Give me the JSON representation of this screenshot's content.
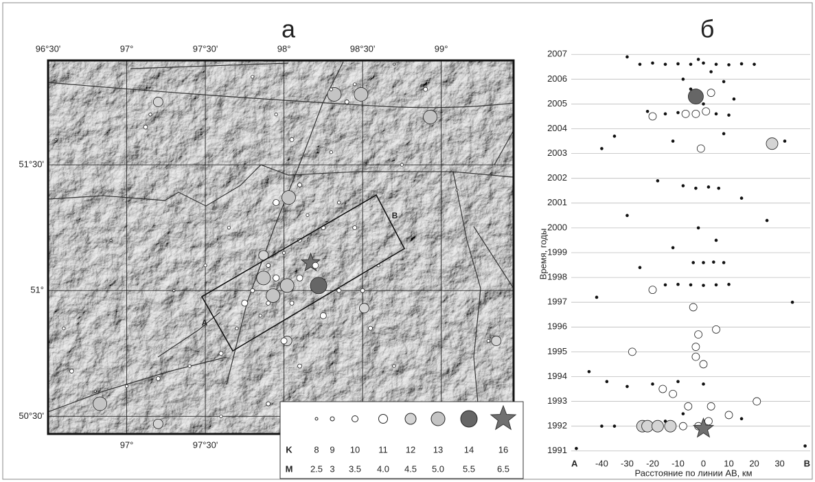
{
  "chart_data": [
    {
      "type": "map",
      "title": "а",
      "xlim": [
        96.5,
        99.46
      ],
      "ylim": [
        50.43,
        51.915
      ],
      "xticks": [
        {
          "value": 96.5,
          "label": "96°30'"
        },
        {
          "value": 97,
          "label": "97°"
        },
        {
          "value": 97.5,
          "label": "97°30'"
        },
        {
          "value": 98,
          "label": "98°"
        },
        {
          "value": 98.5,
          "label": "98°30'"
        },
        {
          "value": 99,
          "label": "99°"
        }
      ],
      "yticks": [
        {
          "value": 50.5,
          "label": "50°30'"
        },
        {
          "value": 51,
          "label": "51°"
        },
        {
          "value": 51.5,
          "label": "51°30'"
        }
      ],
      "profile_labels": [
        "A",
        "B"
      ],
      "legend": {
        "row_labels": [
          "K",
          "M"
        ],
        "items": [
          {
            "K": 8,
            "M": "2.5",
            "color": "#ffffff"
          },
          {
            "K": 9,
            "M": "3",
            "color": "#ffffff"
          },
          {
            "K": 10,
            "M": "3.5",
            "color": "#ffffff"
          },
          {
            "K": 11,
            "M": "4.0",
            "color": "#ffffff"
          },
          {
            "K": 12,
            "M": "4.5",
            "color": "#d4d4d4"
          },
          {
            "K": 13,
            "M": "5.0",
            "color": "#c4c4c4"
          },
          {
            "K": 14,
            "M": "5.5",
            "color": "#666666"
          },
          {
            "K": 16,
            "M": "6.5",
            "color": "#707070"
          }
        ]
      },
      "x": [
        97.9,
        98.0,
        98.1,
        97.95,
        98.05,
        97.85,
        98.15,
        97.8,
        98.2,
        98.25,
        97.7,
        97.6,
        97.4,
        97.2,
        97.0,
        96.8,
        96.65,
        98.35,
        98.45,
        98.3,
        98.4,
        98.45,
        98.05,
        97.95,
        97.15,
        97.12,
        98.9,
        97.5,
        97.3,
        96.6,
        98.55,
        98.7,
        99.3,
        97.9,
        97.6,
        98.1,
        98.0,
        97.95,
        98.1,
        98.3,
        98.6,
        98.5,
        97.65,
        98.75,
        96.55,
        97.8,
        98.7,
        99.1,
        96.9,
        98.35,
        98.25,
        97.75,
        98.1,
        97.9,
        98.22,
        98.17,
        98.32,
        98.49,
        98.93,
        96.83,
        97.87,
        97.93,
        98.02,
        98.03,
        97.87,
        97.2,
        97.2,
        99.35,
        98.02,
        98.51
      ],
      "values": [
        51.1,
        51.15,
        51.2,
        51.05,
        50.95,
        50.9,
        51.3,
        51.0,
        51.1,
        51.25,
        50.85,
        50.75,
        50.7,
        50.65,
        50.62,
        50.6,
        50.68,
        51.35,
        51.25,
        51.8,
        51.75,
        51.82,
        51.6,
        51.7,
        51.7,
        51.65,
        51.8,
        51.1,
        51.0,
        50.85,
        50.85,
        50.7,
        50.8,
        50.55,
        50.5,
        50.7,
        50.8,
        51.35,
        51.42,
        51.55,
        51.1,
        51.0,
        51.25,
        51.5,
        51.6,
        51.85,
        51.9,
        51.4,
        51.2,
        51.0,
        50.9,
        50.95,
        51.05,
        50.95,
        51.02,
        51.11,
        51.78,
        51.78,
        51.69,
        50.55,
        51.05,
        50.98,
        51.02,
        51.37,
        51.14,
        51.75,
        50.47,
        50.8,
        50.8,
        50.93
      ],
      "sizes": [
        10,
        9,
        10,
        11,
        10,
        9,
        9,
        10,
        11,
        10,
        9,
        10,
        9,
        10,
        9,
        8,
        10,
        9,
        10,
        9,
        10,
        9,
        10,
        9,
        9,
        10,
        10,
        9,
        8,
        9,
        10,
        9,
        9,
        10,
        9,
        10,
        11,
        11,
        10,
        9,
        9,
        10,
        9,
        9,
        8,
        9,
        8,
        8,
        8,
        10,
        11,
        11,
        11,
        10,
        14,
        16,
        13,
        13,
        13,
        13,
        13,
        13,
        13,
        13,
        12,
        12,
        12,
        12,
        12,
        12
      ]
    },
    {
      "type": "scatter",
      "title": "б",
      "x_label": "Расстояние по линии АВ, км",
      "y_label": "Время, годы",
      "xlim": [
        -52,
        42
      ],
      "ylim": [
        1990.8,
        2007.2
      ],
      "xticks": [
        {
          "value": -52,
          "label": "A"
        },
        -40,
        -30,
        -20,
        -10,
        0,
        10,
        20,
        30,
        {
          "value": 42,
          "label": "B"
        }
      ],
      "yticks": [
        1991,
        1992,
        1993,
        1994,
        1995,
        1996,
        1997,
        1998,
        1999,
        2000,
        2001,
        2002,
        2003,
        2004,
        2005,
        2006,
        2007
      ],
      "grid": true,
      "dot_color": "#111111",
      "x": [
        -30,
        -20,
        -15,
        -10,
        -5,
        0,
        5,
        10,
        15,
        -25,
        20,
        -2,
        3,
        -8,
        8,
        -3,
        3,
        -20,
        -7,
        -3,
        1,
        -15,
        -10,
        5,
        10,
        -22,
        0,
        -5,
        12,
        27,
        -1,
        -35,
        32,
        -12,
        8,
        -40,
        -8,
        -3,
        2,
        6,
        -18,
        15,
        -30,
        25,
        -2,
        5,
        -12,
        0,
        4,
        8,
        -4,
        -25,
        -15,
        -10,
        -5,
        0,
        5,
        10,
        -20,
        -4,
        -42,
        35,
        5,
        -2,
        -3,
        -28,
        -3,
        0,
        -45,
        -38,
        -30,
        -20,
        -10,
        0,
        -16,
        -12,
        21,
        -6,
        3,
        10,
        -8,
        -15,
        -35,
        -40,
        15,
        -24,
        -22,
        -18,
        -13,
        -8,
        -2,
        2,
        0,
        -50,
        40
      ],
      "values": [
        2006.9,
        2006.65,
        2006.6,
        2006.62,
        2006.6,
        2006.65,
        2006.6,
        2006.58,
        2006.62,
        2006.6,
        2006.6,
        2006.8,
        2006.3,
        2006.0,
        2005.9,
        2005.3,
        2005.45,
        2004.5,
        2004.6,
        2004.6,
        2004.7,
        2004.6,
        2004.65,
        2004.6,
        2004.55,
        2004.7,
        2005.0,
        2005.6,
        2005.2,
        2003.4,
        2003.2,
        2003.7,
        2003.5,
        2003.5,
        2003.8,
        2003.2,
        2001.7,
        2001.6,
        2001.65,
        2001.6,
        2001.9,
        2001.2,
        2000.5,
        2000.3,
        2000.0,
        1999.5,
        1999.2,
        1998.6,
        1998.62,
        1998.6,
        1998.6,
        1998.4,
        1997.7,
        1997.72,
        1997.7,
        1997.68,
        1997.7,
        1997.72,
        1997.5,
        1996.8,
        1997.2,
        1997.0,
        1995.9,
        1995.7,
        1995.2,
        1995.0,
        1994.8,
        1994.5,
        1994.2,
        1993.8,
        1993.6,
        1993.7,
        1993.8,
        1993.7,
        1993.5,
        1993.3,
        1993.0,
        1992.8,
        1992.8,
        1992.45,
        1992.5,
        1992.2,
        1992.0,
        1992.0,
        1992.3,
        1992.0,
        1992.0,
        1992.0,
        1992.0,
        1992.0,
        1992.0,
        1992.2,
        1991.9,
        1991.1,
        1991.2
      ],
      "sizes": [
        9,
        9,
        9,
        9,
        9,
        9,
        9,
        9,
        9,
        9,
        9,
        9,
        9,
        9,
        9,
        14,
        11,
        11,
        11,
        11,
        11,
        9,
        9,
        9,
        9,
        9,
        9,
        9,
        9,
        12,
        11,
        9,
        9,
        9,
        9,
        9,
        9,
        9,
        9,
        9,
        9,
        9,
        9,
        9,
        9,
        9,
        9,
        9,
        9,
        9,
        9,
        9,
        9,
        9,
        9,
        9,
        9,
        9,
        11,
        11,
        9,
        9,
        11,
        11,
        11,
        11,
        11,
        11,
        9,
        9,
        9,
        9,
        9,
        9,
        11,
        11,
        11,
        11,
        11,
        11,
        9,
        9,
        9,
        9,
        9,
        12,
        12,
        12,
        12,
        11,
        11,
        11,
        16,
        9,
        9
      ]
    }
  ]
}
